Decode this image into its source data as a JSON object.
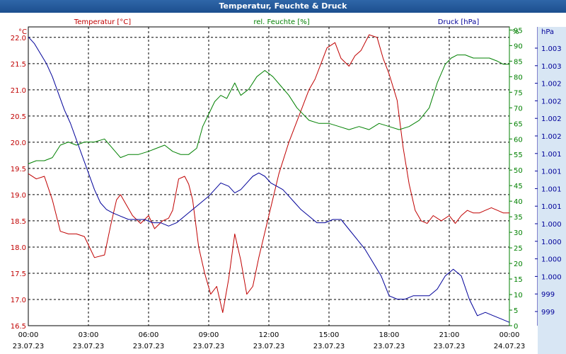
{
  "window": {
    "title": "Temperatur, Feuchte & Druck"
  },
  "chart_data": {
    "type": "line",
    "title": "Temperatur, Feuchte & Druck",
    "grid": true,
    "colors": {
      "temperature": "#c00000",
      "humidity": "#008000",
      "pressure": "#000099"
    },
    "x_ticks": [
      {
        "time": "00:00",
        "date": "23.07.23"
      },
      {
        "time": "03:00",
        "date": "23.07.23"
      },
      {
        "time": "06:00",
        "date": "23.07.23"
      },
      {
        "time": "09:00",
        "date": "23.07.23"
      },
      {
        "time": "12:00",
        "date": "23.07.23"
      },
      {
        "time": "15:00",
        "date": "23.07.23"
      },
      {
        "time": "18:00",
        "date": "23.07.23"
      },
      {
        "time": "21:00",
        "date": "23.07.23"
      },
      {
        "time": "00:00",
        "date": "24.07.23"
      }
    ],
    "x_hours_range": [
      0,
      24
    ],
    "axes": {
      "temperature": {
        "unit": "°C",
        "label": "Temperatur [°C]",
        "range": [
          16.5,
          22.2
        ],
        "ticks": [
          "22.0",
          "21.5",
          "21.0",
          "20.5",
          "20.0",
          "19.5",
          "19.0",
          "18.5",
          "18.0",
          "17.5",
          "17.0",
          "16.5"
        ]
      },
      "humidity": {
        "unit": "%",
        "label": "rel. Feuchte [%]",
        "range": [
          0,
          96
        ],
        "ticks": [
          "95",
          "90",
          "85",
          "80",
          "75",
          "70",
          "65",
          "60",
          "55",
          "50",
          "45",
          "40",
          "35",
          "30",
          "25",
          "20",
          "15",
          "10",
          "5",
          "0"
        ]
      },
      "pressure": {
        "unit": "hPa",
        "label": "Druck [hPa]",
        "range": [
          999.0,
          1003.5
        ],
        "ticks": [
          "1.003",
          "1.003",
          "1.002",
          "1.002",
          "1.002",
          "1.002",
          "1.001",
          "1.001",
          "1.001",
          "1.001",
          "1.000",
          "1.000",
          "1.000",
          "1.000",
          "999",
          "999"
        ]
      }
    },
    "series": [
      {
        "name": "Temperatur [°C]",
        "axis": "temperature",
        "x": [
          0,
          0.4,
          0.8,
          1.2,
          1.6,
          2.0,
          2.4,
          2.8,
          3.3,
          3.8,
          4.1,
          4.4,
          4.6,
          4.9,
          5.2,
          5.6,
          6.0,
          6.3,
          6.7,
          7.0,
          7.2,
          7.5,
          7.8,
          8.0,
          8.2,
          8.5,
          8.8,
          9.1,
          9.4,
          9.7,
          10.0,
          10.3,
          10.6,
          10.9,
          11.2,
          11.5,
          12.0,
          12.5,
          13.0,
          13.5,
          14.0,
          14.3,
          14.6,
          14.9,
          15.3,
          15.6,
          16.0,
          16.3,
          16.6,
          17.0,
          17.4,
          17.7,
          18.0,
          18.4,
          18.7,
          19.0,
          19.3,
          19.6,
          19.9,
          20.2,
          20.6,
          21.0,
          21.3,
          21.6,
          21.9,
          22.2,
          22.5,
          22.8,
          23.1,
          23.4,
          23.7,
          24.0
        ],
        "y": [
          19.4,
          19.3,
          19.35,
          18.9,
          18.3,
          18.25,
          18.25,
          18.2,
          17.8,
          17.85,
          18.4,
          18.9,
          19.0,
          18.8,
          18.6,
          18.45,
          18.6,
          18.35,
          18.5,
          18.55,
          18.7,
          19.3,
          19.35,
          19.2,
          18.9,
          18.0,
          17.5,
          17.1,
          17.25,
          16.75,
          17.4,
          18.25,
          17.75,
          17.1,
          17.25,
          17.8,
          18.6,
          19.4,
          20.0,
          20.5,
          21.0,
          21.2,
          21.5,
          21.8,
          21.9,
          21.6,
          21.45,
          21.65,
          21.75,
          22.05,
          22.0,
          21.6,
          21.3,
          20.8,
          19.9,
          19.2,
          18.7,
          18.5,
          18.45,
          18.6,
          18.5,
          18.6,
          18.45,
          18.6,
          18.7,
          18.65,
          18.65,
          18.7,
          18.75,
          18.7,
          18.65,
          18.65
        ]
      },
      {
        "name": "rel. Feuchte [%]",
        "axis": "humidity",
        "x": [
          0,
          0.4,
          0.8,
          1.2,
          1.6,
          2.0,
          2.4,
          2.8,
          3.3,
          3.8,
          4.2,
          4.6,
          5.0,
          5.5,
          6.0,
          6.4,
          6.8,
          7.2,
          7.6,
          8.0,
          8.4,
          8.7,
          9.0,
          9.3,
          9.6,
          9.9,
          10.3,
          10.6,
          11.0,
          11.4,
          11.8,
          12.2,
          12.6,
          13.0,
          13.4,
          14.0,
          14.5,
          15.0,
          15.5,
          16.0,
          16.5,
          17.0,
          17.5,
          18.0,
          18.5,
          19.0,
          19.5,
          20.0,
          20.4,
          20.8,
          21.1,
          21.4,
          21.8,
          22.2,
          22.6,
          23.0,
          23.4,
          23.7,
          24.0
        ],
        "y": [
          52,
          53,
          53,
          54,
          58,
          59,
          58,
          59,
          59,
          60,
          57,
          54,
          55,
          55,
          56,
          57,
          58,
          56,
          55,
          55,
          57,
          64,
          68,
          72,
          74,
          73,
          78,
          74,
          76,
          80,
          82,
          80,
          77,
          74,
          70,
          66,
          65,
          65,
          64,
          63,
          64,
          63,
          65,
          64,
          63,
          64,
          66,
          70,
          78,
          84,
          86,
          87,
          87,
          86,
          86,
          86,
          85,
          84,
          84
        ]
      },
      {
        "name": "Druck [hPa]",
        "axis": "pressure",
        "x": [
          0,
          0.3,
          0.6,
          0.9,
          1.2,
          1.5,
          1.8,
          2.1,
          2.4,
          2.7,
          3.0,
          3.3,
          3.6,
          3.9,
          4.2,
          4.6,
          5.0,
          5.4,
          5.8,
          6.2,
          6.6,
          7.0,
          7.4,
          7.8,
          8.2,
          8.6,
          9.0,
          9.3,
          9.6,
          10.0,
          10.3,
          10.6,
          10.9,
          11.2,
          11.5,
          11.8,
          12.1,
          12.4,
          12.7,
          13.0,
          13.3,
          13.6,
          14.0,
          14.4,
          14.8,
          15.2,
          15.6,
          16.0,
          16.4,
          16.8,
          17.2,
          17.6,
          18.0,
          18.4,
          18.8,
          19.2,
          19.6,
          20.0,
          20.4,
          20.8,
          21.2,
          21.6,
          22.0,
          22.4,
          22.8,
          23.2,
          23.6,
          24.0
        ],
        "y": [
          1003.35,
          1003.25,
          1003.1,
          1002.95,
          1002.75,
          1002.5,
          1002.25,
          1002.05,
          1001.8,
          1001.55,
          1001.3,
          1001.05,
          1000.85,
          1000.75,
          1000.7,
          1000.65,
          1000.6,
          1000.6,
          1000.6,
          1000.55,
          1000.55,
          1000.5,
          1000.55,
          1000.65,
          1000.75,
          1000.85,
          1000.95,
          1001.05,
          1001.15,
          1001.1,
          1001.0,
          1001.05,
          1001.15,
          1001.25,
          1001.3,
          1001.25,
          1001.15,
          1001.1,
          1001.05,
          1000.95,
          1000.85,
          1000.75,
          1000.65,
          1000.55,
          1000.55,
          1000.6,
          1000.6,
          1000.45,
          1000.3,
          1000.15,
          999.95,
          999.75,
          999.45,
          999.4,
          999.4,
          999.45,
          999.45,
          999.45,
          999.55,
          999.75,
          999.85,
          999.75,
          999.4,
          999.15,
          999.2,
          999.15,
          999.1,
          999.05
        ]
      }
    ]
  }
}
